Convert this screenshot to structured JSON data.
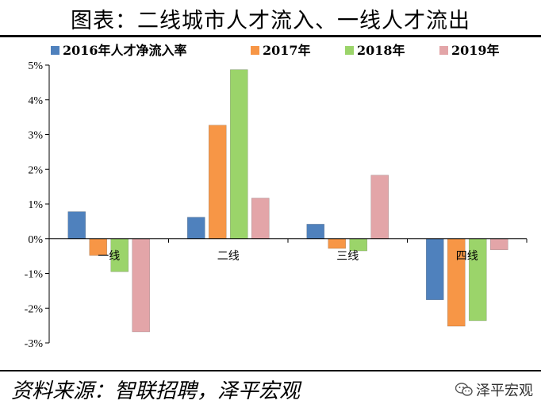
{
  "title": "图表：二线城市人才流入、一线人才流出",
  "source": "资料来源：智联招聘，泽平宏观",
  "watermark": "泽平宏观",
  "watermark_icon": "wechat-icon",
  "chart_data": {
    "type": "bar",
    "categories": [
      "一线",
      "二线",
      "三线",
      "四线"
    ],
    "series": [
      {
        "name": "2016年人才净流入率",
        "values": [
          0.78,
          0.62,
          0.42,
          -1.76
        ],
        "color": "#4f81bd"
      },
      {
        "name": "2017年",
        "values": [
          -0.48,
          3.27,
          -0.28,
          -2.52
        ],
        "color": "#f79646"
      },
      {
        "name": "2018年",
        "values": [
          -0.95,
          4.87,
          -0.35,
          -2.36
        ],
        "color": "#9bd46a"
      },
      {
        "name": "2019年",
        "values": [
          -2.68,
          1.17,
          1.83,
          -0.32
        ],
        "color": "#e3a5a8"
      }
    ],
    "yticks": [
      "5%",
      "4%",
      "3%",
      "2%",
      "1%",
      "0%",
      "-1%",
      "-2%",
      "-3%"
    ],
    "ylim": [
      -3,
      5
    ],
    "legend_position": "top"
  }
}
